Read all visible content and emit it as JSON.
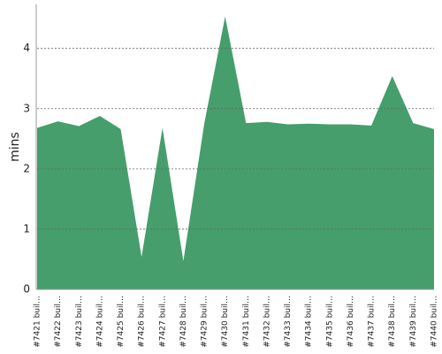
{
  "chart_data": {
    "type": "area",
    "y_label": "mins",
    "categories": [
      "#7421 buil…",
      "#7422 buil…",
      "#7423 buil…",
      "#7424 buil…",
      "#7425 buil…",
      "#7426 buil…",
      "#7427 buil…",
      "#7428 buil…",
      "#7429 buil…",
      "#7430 buil…",
      "#7431 buil…",
      "#7432 buil…",
      "#7433 buil…",
      "#7434 buil…",
      "#7435 buil…",
      "#7436 buil…",
      "#7437 buil…",
      "#7438 buil…",
      "#7439 buil…",
      "#7440 buil…"
    ],
    "values": [
      2.68,
      2.79,
      2.71,
      2.88,
      2.66,
      0.54,
      2.68,
      0.47,
      2.75,
      4.53,
      2.76,
      2.78,
      2.74,
      2.75,
      2.74,
      2.74,
      2.72,
      3.54,
      2.76,
      2.66
    ],
    "color": "#459e6c",
    "ylim": [
      0,
      4.73
    ],
    "yticks": [
      0,
      1,
      2,
      3,
      4
    ],
    "grid": true
  }
}
